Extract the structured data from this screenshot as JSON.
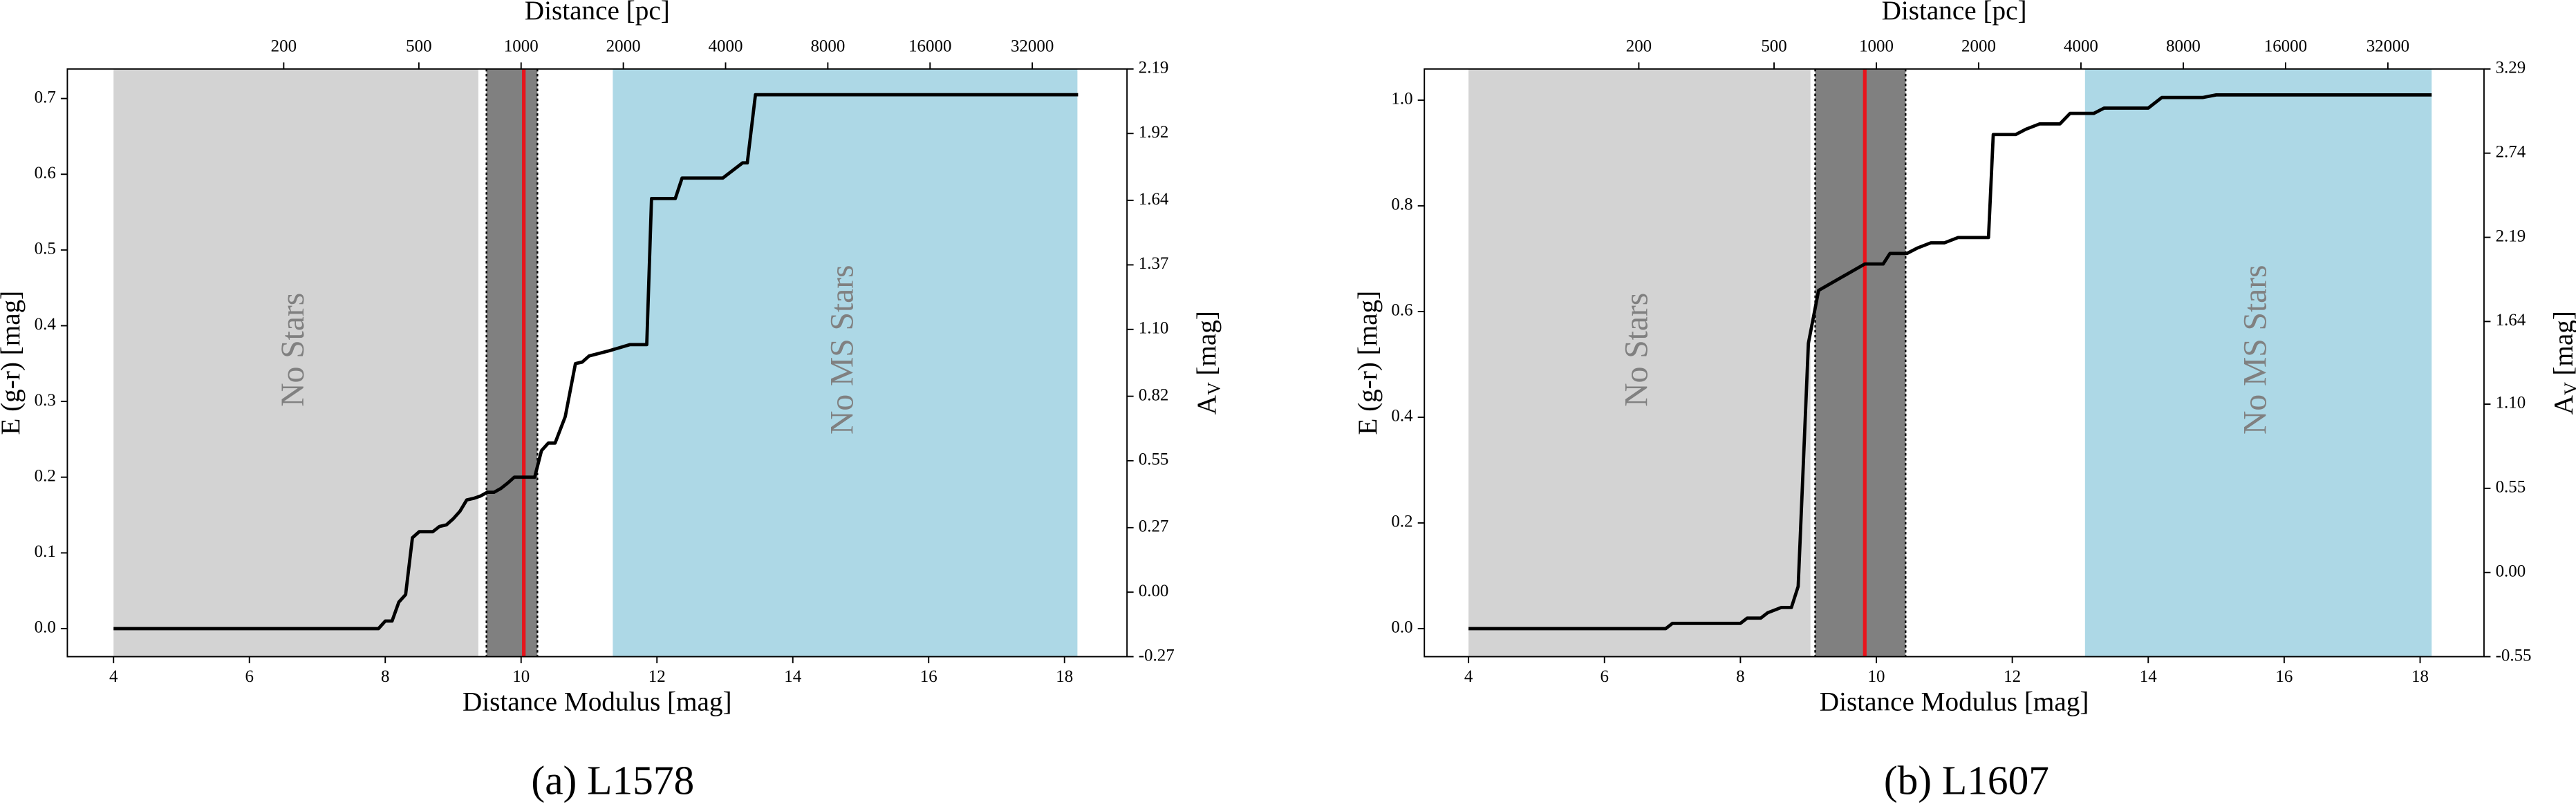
{
  "chart_data": [
    {
      "type": "line",
      "caption": "(a) L1578",
      "xlabel": "Distance Modulus [mag]",
      "ylabel": "E (g-r) [mag]",
      "x2label": "Distance [pc]",
      "x2scale": "distance-modulus",
      "y2label": {
        "text": "A",
        "sub": "V",
        "unit": "[mag]"
      },
      "xlim": [
        3.32,
        18.92
      ],
      "xticks": [
        4,
        6,
        8,
        10,
        12,
        14,
        16,
        18
      ],
      "ylim": [
        -0.037,
        0.739
      ],
      "yticks": [
        {
          "value": 0,
          "label": "0.0"
        },
        0.1,
        0.2,
        0.3,
        0.4,
        0.5,
        0.6,
        0.7
      ],
      "x2ticks": [
        200,
        500,
        1000,
        2000,
        4000,
        8000,
        16000,
        32000
      ],
      "y2lim": [
        -0.27,
        2.19
      ],
      "y2ticks": [
        -0.27,
        {
          "value": 0,
          "label": "0.00"
        },
        0.27,
        0.55,
        0.82,
        {
          "value": 1.1,
          "label": "1.10"
        },
        1.37,
        1.64,
        1.92,
        2.19
      ],
      "regions": [
        {
          "name": "No Stars",
          "color": "#d3d3d3",
          "range": [
            4,
            9.37
          ]
        },
        {
          "color": "#808080",
          "range": [
            9.49,
            10.24
          ],
          "edge": "dotted"
        },
        {
          "name": "No MS Stars",
          "color": "#add8e6",
          "range": [
            11.35,
            18.19
          ]
        }
      ],
      "vline": {
        "value": 10.04,
        "color": "#e8141c"
      },
      "color": "#000000",
      "x": [
        4,
        7.9,
        8.0,
        8.1,
        8.2,
        8.3,
        8.4,
        8.5,
        8.7,
        8.8,
        8.9,
        9.0,
        9.1,
        9.2,
        9.3,
        9.4,
        9.5,
        9.6,
        9.7,
        9.8,
        9.9,
        10.2,
        10.3,
        10.4,
        10.5,
        10.65,
        10.8,
        10.9,
        11.0,
        11.3,
        11.6,
        11.85,
        11.92,
        12.27,
        12.37,
        12.97,
        13.26,
        13.33,
        13.45,
        18.2
      ],
      "values": [
        0,
        0,
        0.01,
        0.01,
        0.035,
        0.045,
        0.12,
        0.128,
        0.128,
        0.135,
        0.137,
        0.145,
        0.155,
        0.17,
        0.172,
        0.175,
        0.18,
        0.18,
        0.185,
        0.192,
        0.2,
        0.2,
        0.235,
        0.245,
        0.245,
        0.28,
        0.35,
        0.352,
        0.36,
        0.367,
        0.375,
        0.375,
        0.568,
        0.568,
        0.595,
        0.595,
        0.615,
        0.615,
        0.705,
        0.705
      ]
    },
    {
      "type": "line",
      "caption": "(b) L1607",
      "xlabel": "Distance Modulus [mag]",
      "ylabel": "E (g-r) [mag]",
      "x2label": "Distance [pc]",
      "x2scale": "distance-modulus",
      "y2label": {
        "text": "A",
        "sub": "V",
        "unit": "[mag]"
      },
      "xlim": [
        3.35,
        18.94
      ],
      "xticks": [
        4,
        6,
        8,
        10,
        12,
        14,
        16,
        18
      ],
      "ylim": [
        -0.053,
        1.059
      ],
      "yticks": [
        {
          "value": 0,
          "label": "0.0"
        },
        0.2,
        0.4,
        0.6,
        0.8,
        {
          "value": 1,
          "label": "1.0"
        }
      ],
      "x2ticks": [
        200,
        500,
        1000,
        2000,
        4000,
        8000,
        16000,
        32000
      ],
      "y2lim": [
        -0.55,
        3.29
      ],
      "y2ticks": [
        -0.55,
        {
          "value": 0,
          "label": "0.00"
        },
        0.55,
        {
          "value": 1.1,
          "label": "1.10"
        },
        1.64,
        2.19,
        2.74,
        3.29
      ],
      "regions": [
        {
          "name": "No Stars",
          "color": "#d3d3d3",
          "range": [
            4,
            9.03
          ]
        },
        {
          "color": "#808080",
          "range": [
            9.1,
            10.43
          ],
          "edge": "dotted"
        },
        {
          "name": "No MS Stars",
          "color": "#add8e6",
          "range": [
            13.07,
            18.17
          ]
        }
      ],
      "vline": {
        "value": 9.83,
        "color": "#e8141c"
      },
      "color": "#000000",
      "x": [
        4,
        6.9,
        7.0,
        8.0,
        8.1,
        8.3,
        8.4,
        8.6,
        8.75,
        8.85,
        9.0,
        9.15,
        9.83,
        10.1,
        10.2,
        10.45,
        10.6,
        10.8,
        11.0,
        11.2,
        11.65,
        11.72,
        12.05,
        12.2,
        12.4,
        12.7,
        12.85,
        13.2,
        13.35,
        14.0,
        14.2,
        14.8,
        15.0,
        18.17
      ],
      "values": [
        0,
        0,
        0.01,
        0.01,
        0.02,
        0.02,
        0.03,
        0.04,
        0.04,
        0.08,
        0.54,
        0.64,
        0.69,
        0.69,
        0.71,
        0.71,
        0.72,
        0.73,
        0.73,
        0.74,
        0.74,
        0.935,
        0.935,
        0.945,
        0.955,
        0.955,
        0.975,
        0.975,
        0.985,
        0.985,
        1.005,
        1.005,
        1.01,
        1.01
      ]
    }
  ]
}
